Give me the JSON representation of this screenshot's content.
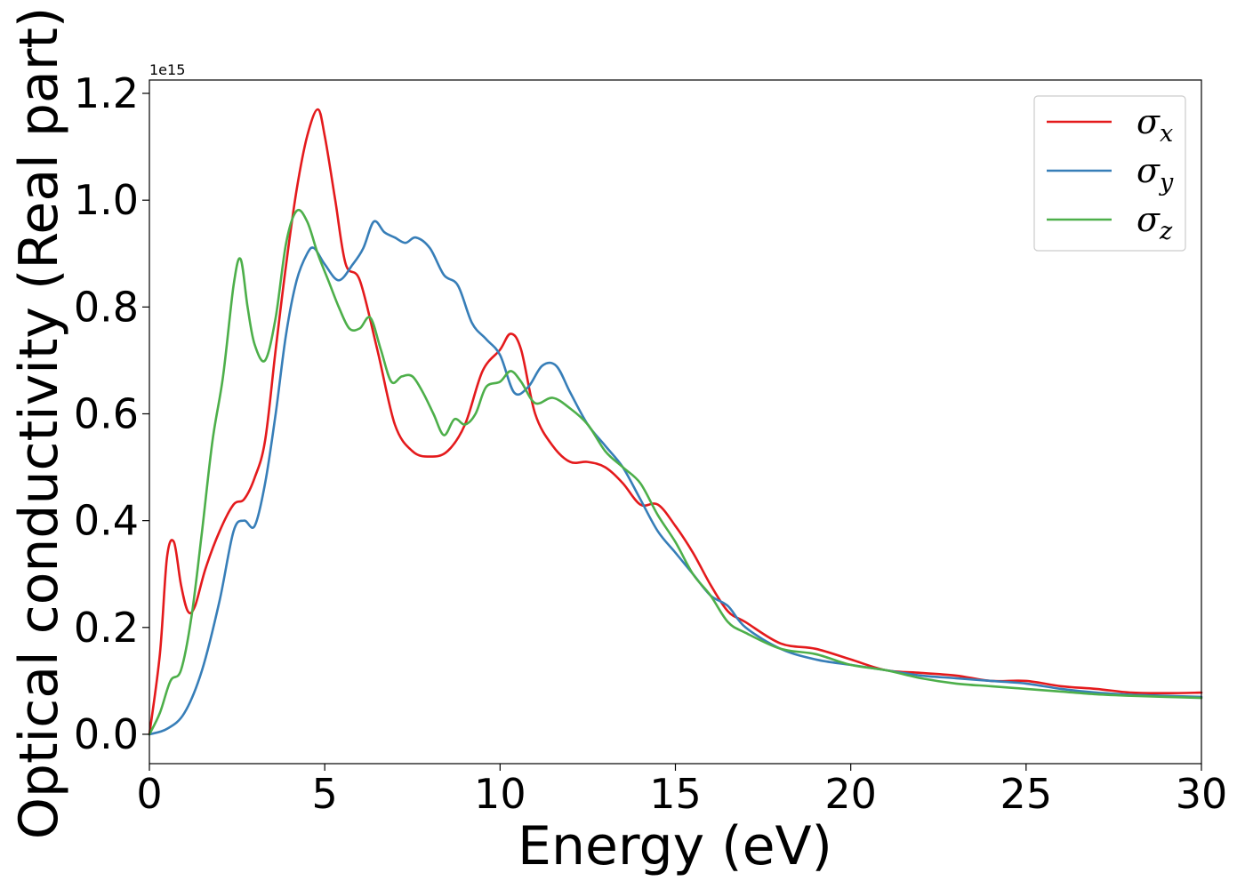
{
  "chart_data": {
    "type": "line",
    "xlabel": "Energy (eV)",
    "ylabel": "Optical conductivity (Real part)",
    "y_offset_label": "1e15",
    "xlim": [
      0,
      30
    ],
    "ylim": [
      -0.055,
      1.225
    ],
    "y_scale_factor": "1e15",
    "x_ticks": [
      0,
      5,
      10,
      15,
      20,
      25,
      30
    ],
    "x_tick_labels": [
      "0",
      "5",
      "10",
      "15",
      "20",
      "25",
      "30"
    ],
    "y_ticks": [
      0.0,
      0.2,
      0.4,
      0.6,
      0.8,
      1.0,
      1.2
    ],
    "y_tick_labels": [
      "0.0",
      "0.2",
      "0.4",
      "0.6",
      "0.8",
      "1.0",
      "1.2"
    ],
    "grid": false,
    "legend_position": "top-right",
    "series": [
      {
        "name": "σx",
        "symbol": "σ",
        "subscript": "x",
        "color": "#e41a1c",
        "x": [
          0,
          0.3,
          0.5,
          0.7,
          0.9,
          1.1,
          1.3,
          1.6,
          2.0,
          2.4,
          2.7,
          3.0,
          3.3,
          3.6,
          3.9,
          4.2,
          4.5,
          4.8,
          5.0,
          5.3,
          5.6,
          6.0,
          6.5,
          7.0,
          7.5,
          8.0,
          8.5,
          9.0,
          9.5,
          10.0,
          10.3,
          10.6,
          11.0,
          11.5,
          12.0,
          12.5,
          13.0,
          13.5,
          14.0,
          14.5,
          15.0,
          15.5,
          16.0,
          16.5,
          17.0,
          18.0,
          19.0,
          20.0,
          21.0,
          22.0,
          23.0,
          24.0,
          25.0,
          26.0,
          27.0,
          28.0,
          29.0,
          30.0
        ],
        "y": [
          0.0,
          0.15,
          0.33,
          0.36,
          0.28,
          0.23,
          0.24,
          0.31,
          0.38,
          0.43,
          0.44,
          0.48,
          0.55,
          0.72,
          0.88,
          1.02,
          1.12,
          1.17,
          1.12,
          1.0,
          0.88,
          0.85,
          0.72,
          0.58,
          0.53,
          0.52,
          0.53,
          0.58,
          0.68,
          0.72,
          0.75,
          0.72,
          0.6,
          0.54,
          0.51,
          0.51,
          0.5,
          0.47,
          0.43,
          0.43,
          0.39,
          0.34,
          0.28,
          0.23,
          0.21,
          0.17,
          0.16,
          0.14,
          0.12,
          0.115,
          0.11,
          0.1,
          0.1,
          0.09,
          0.085,
          0.078,
          0.077,
          0.078
        ]
      },
      {
        "name": "σy",
        "symbol": "σ",
        "subscript": "y",
        "color": "#377eb8",
        "x": [
          0,
          0.5,
          1.0,
          1.5,
          2.0,
          2.4,
          2.7,
          3.0,
          3.3,
          3.6,
          3.9,
          4.2,
          4.5,
          4.7,
          5.0,
          5.4,
          5.8,
          6.1,
          6.4,
          6.7,
          7.0,
          7.3,
          7.6,
          8.0,
          8.4,
          8.8,
          9.2,
          9.6,
          10.0,
          10.4,
          10.8,
          11.2,
          11.6,
          12.0,
          12.5,
          13.0,
          13.5,
          14.0,
          14.5,
          15.0,
          15.5,
          16.0,
          16.5,
          17.0,
          18.0,
          19.0,
          20.0,
          21.0,
          22.0,
          23.0,
          24.0,
          25.0,
          26.0,
          27.0,
          28.0,
          29.0,
          30.0
        ],
        "y": [
          0.0,
          0.01,
          0.04,
          0.12,
          0.25,
          0.38,
          0.4,
          0.39,
          0.47,
          0.6,
          0.75,
          0.85,
          0.9,
          0.91,
          0.88,
          0.85,
          0.88,
          0.91,
          0.96,
          0.94,
          0.93,
          0.92,
          0.93,
          0.91,
          0.86,
          0.84,
          0.77,
          0.74,
          0.71,
          0.64,
          0.65,
          0.69,
          0.69,
          0.64,
          0.58,
          0.54,
          0.5,
          0.44,
          0.38,
          0.34,
          0.3,
          0.26,
          0.24,
          0.2,
          0.16,
          0.14,
          0.13,
          0.12,
          0.11,
          0.105,
          0.1,
          0.095,
          0.085,
          0.078,
          0.074,
          0.072,
          0.07
        ]
      },
      {
        "name": "σz",
        "symbol": "σ",
        "subscript": "z",
        "color": "#4daf4a",
        "x": [
          0,
          0.3,
          0.6,
          0.9,
          1.2,
          1.5,
          1.8,
          2.1,
          2.4,
          2.6,
          2.8,
          3.0,
          3.3,
          3.6,
          3.9,
          4.2,
          4.5,
          4.8,
          5.1,
          5.4,
          5.7,
          6.0,
          6.3,
          6.6,
          6.9,
          7.2,
          7.5,
          7.8,
          8.1,
          8.4,
          8.7,
          9.0,
          9.3,
          9.6,
          10.0,
          10.3,
          10.6,
          11.0,
          11.5,
          12.0,
          12.5,
          13.0,
          13.5,
          14.0,
          14.5,
          15.0,
          15.5,
          16.0,
          16.5,
          17.0,
          18.0,
          19.0,
          20.0,
          21.0,
          22.0,
          23.0,
          24.0,
          25.0,
          26.0,
          27.0,
          28.0,
          29.0,
          30.0
        ],
        "y": [
          0.0,
          0.04,
          0.1,
          0.12,
          0.22,
          0.38,
          0.55,
          0.67,
          0.84,
          0.89,
          0.8,
          0.73,
          0.7,
          0.78,
          0.92,
          0.98,
          0.96,
          0.9,
          0.85,
          0.8,
          0.76,
          0.76,
          0.78,
          0.72,
          0.66,
          0.67,
          0.67,
          0.64,
          0.6,
          0.56,
          0.59,
          0.58,
          0.6,
          0.65,
          0.66,
          0.68,
          0.66,
          0.62,
          0.63,
          0.61,
          0.58,
          0.53,
          0.5,
          0.47,
          0.41,
          0.36,
          0.3,
          0.26,
          0.21,
          0.19,
          0.16,
          0.15,
          0.13,
          0.12,
          0.105,
          0.095,
          0.09,
          0.085,
          0.08,
          0.075,
          0.072,
          0.07,
          0.068
        ]
      }
    ]
  }
}
